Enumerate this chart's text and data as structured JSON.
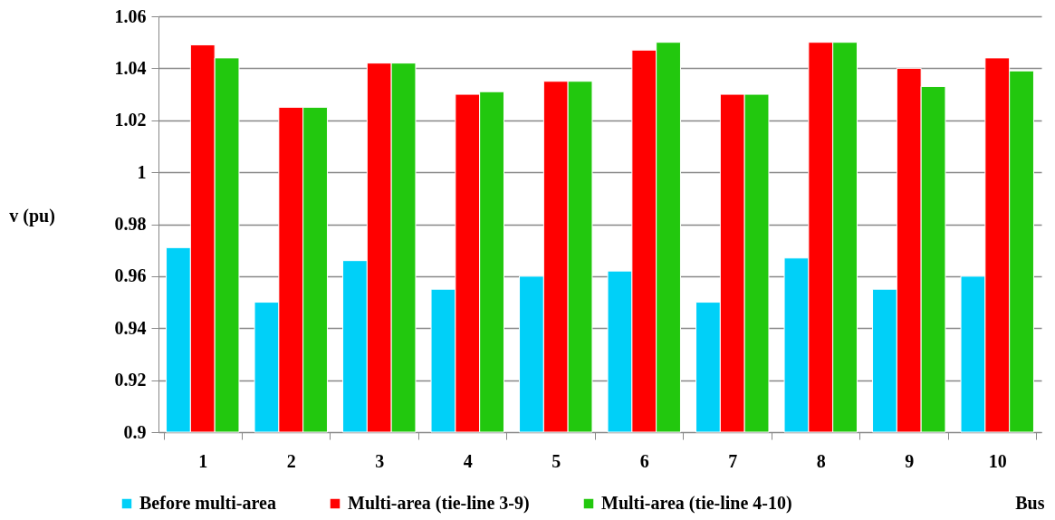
{
  "chart_data": {
    "type": "bar",
    "xlabel": "Bus",
    "ylabel": "v (pu)",
    "categories": [
      "1",
      "2",
      "3",
      "4",
      "5",
      "6",
      "7",
      "8",
      "9",
      "10"
    ],
    "series": [
      {
        "name": "Before multi-area",
        "color": "#00d0f8",
        "values": [
          0.971,
          0.95,
          0.966,
          0.955,
          0.96,
          0.962,
          0.95,
          0.967,
          0.955,
          0.96
        ]
      },
      {
        "name": "Multi-area (tie-line 3-9)",
        "color": "#ff0000",
        "values": [
          1.049,
          1.025,
          1.042,
          1.03,
          1.035,
          1.047,
          1.03,
          1.05,
          1.04,
          1.044
        ]
      },
      {
        "name": "Multi-area (tie-line 4-10)",
        "color": "#22c80e",
        "values": [
          1.044,
          1.025,
          1.042,
          1.031,
          1.035,
          1.05,
          1.03,
          1.05,
          1.033,
          1.039
        ]
      }
    ],
    "ylim": [
      0.9,
      1.06
    ],
    "yticks": [
      0.9,
      0.92,
      0.94,
      0.96,
      0.98,
      1,
      1.02,
      1.04,
      1.06
    ],
    "grid": "y",
    "legend": "bottom"
  }
}
